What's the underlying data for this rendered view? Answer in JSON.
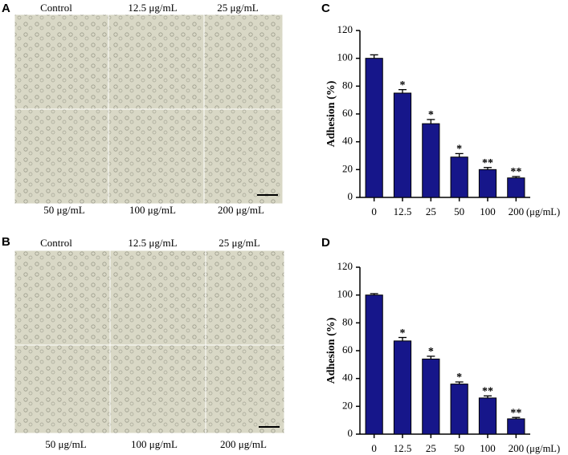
{
  "figure": {
    "panel_labels": [
      "A",
      "B",
      "C",
      "D"
    ],
    "image_labels_A": [
      "Control",
      "12.5 μg/mL",
      "25 μg/mL",
      "50 μg/mL",
      "100 μg/mL",
      "200 μg/mL"
    ],
    "image_labels_B": [
      "Control",
      "12.5 μg/mL",
      "25 μg/mL",
      "50 μg/mL",
      "100 μg/mL",
      "200 μg/mL"
    ]
  },
  "chart_data": [
    {
      "type": "bar",
      "ylabel": "Adhesion (%)",
      "xunit": "(μg/mL)",
      "categories": [
        "0",
        "12.5",
        "25",
        "50",
        "100",
        "200"
      ],
      "values": [
        100,
        75,
        53,
        29,
        20,
        14
      ],
      "errors": [
        2.5,
        2.5,
        3,
        2.5,
        1.5,
        1
      ],
      "significance": [
        null,
        "*",
        "*",
        "*",
        "**",
        "**"
      ],
      "color": "#16168a",
      "ylim": [
        0,
        120
      ],
      "yticks": [
        0,
        20,
        40,
        60,
        80,
        100,
        120
      ]
    },
    {
      "type": "bar",
      "ylabel": "Adhesion (%)",
      "xunit": "(μg/mL)",
      "categories": [
        "0",
        "12.5",
        "25",
        "50",
        "100",
        "200"
      ],
      "values": [
        100,
        67,
        54,
        36,
        26,
        11
      ],
      "errors": [
        1,
        2.5,
        2,
        1.5,
        1.5,
        1
      ],
      "significance": [
        null,
        "*",
        "*",
        "*",
        "**",
        "**"
      ],
      "color": "#16168a",
      "ylim": [
        0,
        120
      ],
      "yticks": [
        0,
        20,
        40,
        60,
        80,
        100,
        120
      ]
    }
  ]
}
